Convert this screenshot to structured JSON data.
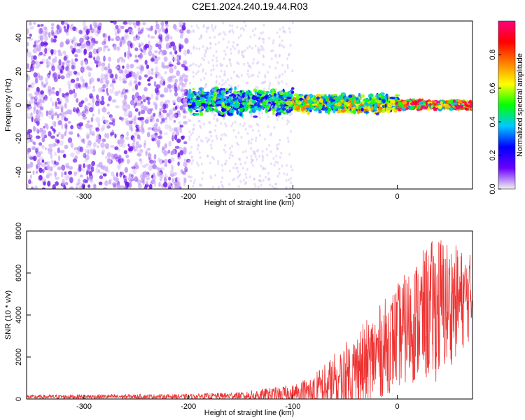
{
  "figure": {
    "title": "C2E1.2024.240.19.44.R03"
  },
  "chart_data": [
    {
      "type": "heatmap",
      "xlabel": "Height of straight line (km)",
      "ylabel": "Frequency (Hz)",
      "xlim": [
        -355,
        72
      ],
      "ylim": [
        -50,
        50
      ],
      "x_ticks": [
        -300,
        -200,
        -100,
        0
      ],
      "y_ticks": [
        -40,
        -20,
        0,
        20,
        40
      ],
      "grid": false,
      "colorbar": {
        "label": "Normalized spectral amplitude",
        "range": [
          0,
          1
        ],
        "ticks": [
          0.0,
          0.2,
          0.4,
          0.6,
          0.8
        ],
        "colormap": [
          "#f2f2f2",
          "#6a00ff",
          "#0000ff",
          "#00c8ff",
          "#00ff00",
          "#ffff00",
          "#ff8000",
          "#ff0000",
          "#ff0080"
        ]
      },
      "description_bands": [
        {
          "x_from": -355,
          "x_to": -200,
          "freq_spread": 50,
          "amplitude": 0.15
        },
        {
          "x_from": -200,
          "x_to": -100,
          "freq_center": 2,
          "freq_halfwidth": 6,
          "amplitude": 0.45
        },
        {
          "x_from": -100,
          "x_to": 0,
          "freq_center": 1,
          "freq_halfwidth": 4,
          "amplitude": 0.6
        },
        {
          "x_from": 0,
          "x_to": 72,
          "freq_center": 0,
          "freq_halfwidth": 2,
          "amplitude": 0.85
        }
      ]
    },
    {
      "type": "line",
      "xlabel": "Height of straight line (km)",
      "ylabel": "SNR (10 * v/v)",
      "xlim": [
        -355,
        72
      ],
      "ylim": [
        0,
        8000
      ],
      "x_ticks": [
        -300,
        -200,
        -100,
        0
      ],
      "y_ticks": [
        0,
        2000,
        4000,
        6000,
        8000
      ],
      "grid": false,
      "color": "#ee3333",
      "envelope": {
        "x": [
          -355,
          -300,
          -200,
          -150,
          -120,
          -100,
          -80,
          -60,
          -40,
          -20,
          0,
          20,
          40,
          60,
          72
        ],
        "mean": [
          100,
          110,
          120,
          150,
          200,
          250,
          350,
          700,
          1300,
          2100,
          3000,
          3800,
          4400,
          4700,
          4900
        ],
        "max": [
          200,
          220,
          230,
          350,
          550,
          700,
          1200,
          2200,
          3200,
          4300,
          5500,
          6800,
          8000,
          7200,
          6900
        ]
      }
    }
  ]
}
